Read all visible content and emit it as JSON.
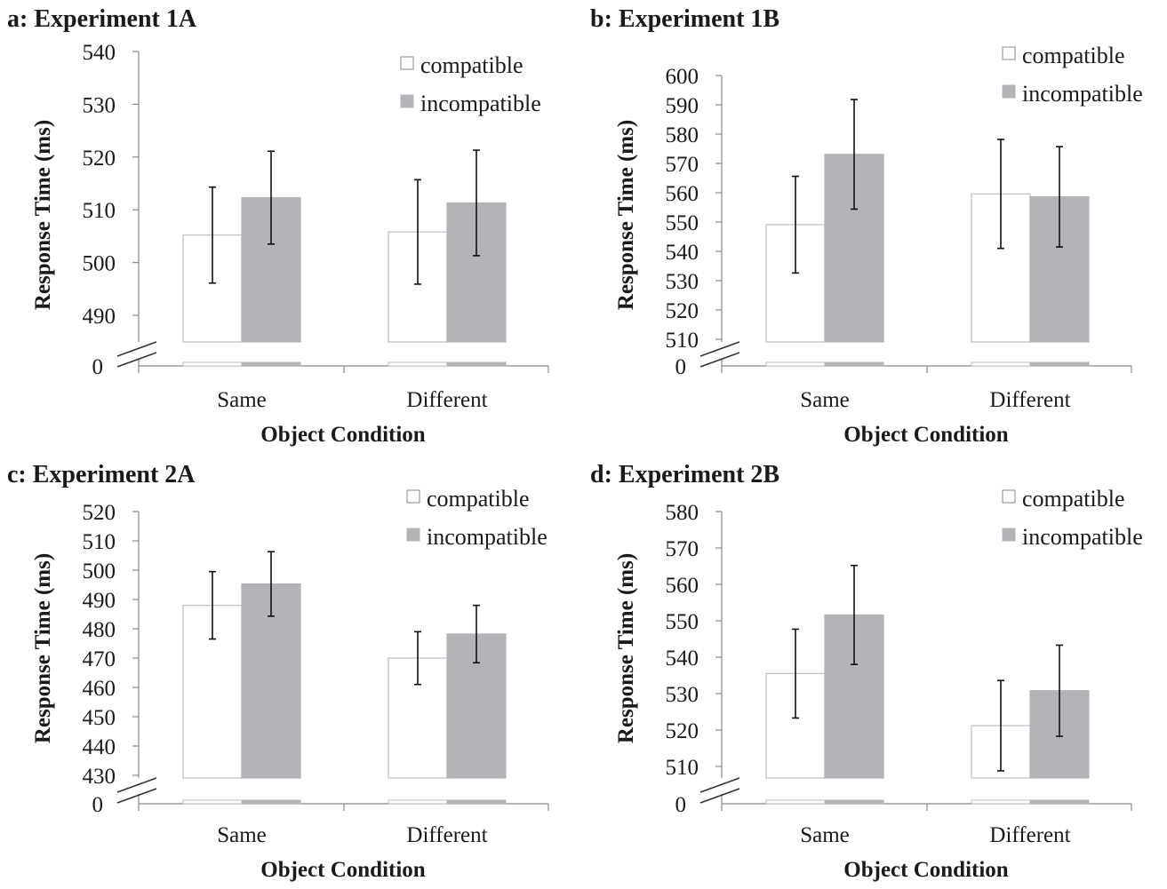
{
  "chart_data": [
    {
      "type": "bar",
      "title": "a: Experiment 1A",
      "xlabel": "Object Condition",
      "ylabel": "Response Time (ms)",
      "categories": [
        "Same",
        "Different"
      ],
      "series": [
        {
          "name": "compatible",
          "values": [
            505.2,
            505.8
          ],
          "errors": [
            9.1,
            9.9
          ],
          "color": "#ffffff",
          "stroke": "#bdbdbd"
        },
        {
          "name": "incompatible",
          "values": [
            512.3,
            511.3
          ],
          "errors": [
            8.8,
            10.0
          ],
          "color": "#b3b4b7",
          "stroke": "#b3b4b7"
        }
      ],
      "ylim": [
        490,
        540
      ],
      "yticks": [
        490,
        500,
        510,
        520,
        530,
        540
      ],
      "axis_break": true,
      "break_label": "0",
      "legend": "top-right",
      "grid": false
    },
    {
      "type": "bar",
      "title": "b: Experiment 1B",
      "xlabel": "Object Condition",
      "ylabel": "Response Time (ms)",
      "categories": [
        "Same",
        "Different"
      ],
      "series": [
        {
          "name": "compatible",
          "values": [
            549.1,
            559.6
          ],
          "errors": [
            16.5,
            18.6
          ],
          "color": "#ffffff",
          "stroke": "#bdbdbd"
        },
        {
          "name": "incompatible",
          "values": [
            573.1,
            558.6
          ],
          "errors": [
            18.7,
            17.1
          ],
          "color": "#b3b4b7",
          "stroke": "#b3b4b7"
        }
      ],
      "ylim": [
        510,
        600
      ],
      "yticks": [
        510,
        520,
        530,
        540,
        550,
        560,
        570,
        580,
        590,
        600
      ],
      "axis_break": true,
      "break_label": "0",
      "legend": "top-right",
      "grid": false
    },
    {
      "type": "bar",
      "title": "c: Experiment 2A",
      "xlabel": "Object Condition",
      "ylabel": "Response Time (ms)",
      "categories": [
        "Same",
        "Different"
      ],
      "series": [
        {
          "name": "compatible",
          "values": [
            488.0,
            470.0
          ],
          "errors": [
            11.5,
            9.0
          ],
          "color": "#ffffff",
          "stroke": "#bdbdbd"
        },
        {
          "name": "incompatible",
          "values": [
            495.3,
            478.2
          ],
          "errors": [
            11.0,
            9.8
          ],
          "color": "#b3b4b7",
          "stroke": "#b3b4b7"
        }
      ],
      "ylim": [
        430,
        520
      ],
      "yticks": [
        430,
        440,
        450,
        460,
        470,
        480,
        490,
        500,
        510,
        520
      ],
      "axis_break": true,
      "break_label": "0",
      "legend": "top-right",
      "grid": false
    },
    {
      "type": "bar",
      "title": "d: Experiment 2B",
      "xlabel": "Object Condition",
      "ylabel": "Response Time (ms)",
      "categories": [
        "Same",
        "Different"
      ],
      "series": [
        {
          "name": "compatible",
          "values": [
            535.5,
            521.2
          ],
          "errors": [
            12.2,
            12.4
          ],
          "color": "#ffffff",
          "stroke": "#bdbdbd"
        },
        {
          "name": "incompatible",
          "values": [
            551.6,
            530.8
          ],
          "errors": [
            13.6,
            12.5
          ],
          "color": "#b3b4b7",
          "stroke": "#b3b4b7"
        }
      ],
      "ylim": [
        510,
        580
      ],
      "yticks": [
        510,
        520,
        530,
        540,
        550,
        560,
        570,
        580
      ],
      "axis_break": true,
      "break_label": "0",
      "legend": "top-right",
      "grid": false
    }
  ]
}
